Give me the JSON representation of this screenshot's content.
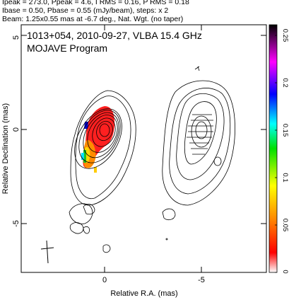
{
  "header": {
    "line1": "Ipeak = 273.0, Ppeak = 4.6, I RMS = 0.16, P RMS = 0.18",
    "line2": "Ibase = 0.50, Pbase = 0.55 (mJy/beam), steps: x 2",
    "line3": "Beam: 1.25x0.55 mas at -6.7 deg., Nat. Wgt. (no taper)"
  },
  "plot": {
    "title_line1": "1013+054, 2010-09-27, VLBA 15.4 GHz",
    "title_line2": "MOJAVE Program",
    "xlabel": "Relative R.A. (mas)",
    "ylabel": "Relative Declination (mas)",
    "xticks": [
      "0",
      "-5"
    ],
    "yticks": [
      "5",
      "0",
      "-5"
    ]
  },
  "colorbar": {
    "ticks": [
      "0.25",
      "0.2",
      "0.15",
      "0.1",
      "0.05",
      "0"
    ]
  }
}
